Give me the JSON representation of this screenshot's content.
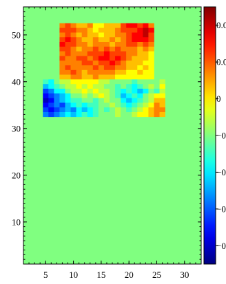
{
  "chart_data": {
    "type": "heatmap",
    "title": "",
    "xlabel": "",
    "ylabel": "",
    "xlim": [
      1,
      33
    ],
    "ylim": [
      1,
      56
    ],
    "x_ticks": [
      "5",
      "10",
      "15",
      "20",
      "25",
      "30"
    ],
    "y_ticks": [
      "10",
      "20",
      "30",
      "40",
      "50"
    ],
    "colormap": "jet",
    "background_value": 0,
    "clim": [
      -0.08,
      0.08
    ],
    "colorbar_ticks": [
      "0.0",
      "0.0",
      "0",
      "−0",
      "−0",
      "−0",
      "−0"
    ],
    "blocks": [
      {
        "name": "upper",
        "x_range": [
          8,
          24
        ],
        "y_range": [
          41,
          52
        ],
        "rows_top_to_bottom": [
          [
            0.04,
            0.05,
            0.04,
            0.03,
            0.03,
            0.04,
            0.02,
            0.02,
            0.03,
            0.03,
            0.03,
            0.05,
            0.06,
            0.06,
            0.05,
            0.06,
            0.04
          ],
          [
            0.05,
            0.05,
            0.05,
            0.04,
            0.04,
            0.03,
            0.02,
            0.03,
            0.03,
            0.03,
            0.04,
            0.05,
            0.05,
            0.05,
            0.06,
            0.07,
            0.06
          ],
          [
            0.04,
            0.05,
            0.04,
            0.03,
            0.04,
            0.03,
            0.03,
            0.02,
            0.03,
            0.03,
            0.04,
            0.04,
            0.05,
            0.06,
            0.06,
            0.07,
            0.05
          ],
          [
            0.05,
            0.06,
            0.05,
            0.04,
            0.03,
            0.03,
            0.04,
            0.03,
            0.03,
            0.04,
            0.03,
            0.04,
            0.05,
            0.06,
            0.06,
            0.06,
            0.05
          ],
          [
            0.06,
            0.05,
            0.05,
            0.04,
            0.04,
            0.03,
            0.04,
            0.04,
            0.04,
            0.03,
            0.04,
            0.04,
            0.05,
            0.05,
            0.04,
            0.05,
            0.04
          ],
          [
            0.05,
            0.05,
            0.04,
            0.03,
            0.04,
            0.04,
            0.05,
            0.04,
            0.05,
            0.04,
            0.05,
            0.04,
            0.04,
            0.04,
            0.03,
            0.04,
            0.03
          ],
          [
            0.04,
            0.05,
            0.04,
            0.04,
            0.04,
            0.05,
            0.05,
            0.05,
            0.06,
            0.05,
            0.05,
            0.05,
            0.04,
            0.04,
            0.03,
            0.03,
            0.02
          ],
          [
            0.05,
            0.04,
            0.04,
            0.05,
            0.05,
            0.04,
            0.05,
            0.06,
            0.06,
            0.05,
            0.06,
            0.05,
            0.04,
            0.03,
            0.03,
            0.03,
            0.02
          ],
          [
            0.04,
            0.04,
            0.04,
            0.04,
            0.05,
            0.05,
            0.04,
            0.05,
            0.05,
            0.06,
            0.05,
            0.04,
            0.03,
            0.03,
            0.03,
            0.02,
            0.02
          ],
          [
            0.04,
            0.05,
            0.04,
            0.04,
            0.04,
            0.04,
            0.05,
            0.04,
            0.05,
            0.05,
            0.04,
            0.04,
            0.03,
            0.03,
            0.02,
            0.03,
            0.02
          ],
          [
            0.04,
            0.04,
            0.05,
            0.04,
            0.03,
            0.04,
            0.04,
            0.04,
            0.04,
            0.04,
            0.03,
            0.03,
            0.02,
            0.02,
            0.03,
            0.02,
            0.02
          ],
          [
            0.03,
            0.03,
            0.04,
            0.04,
            0.03,
            0.03,
            0.04,
            0.03,
            0.03,
            0.03,
            0.02,
            0.02,
            0.02,
            0.02,
            0.02,
            0.02,
            0.02
          ]
        ]
      },
      {
        "name": "lower",
        "x_range": [
          5,
          26
        ],
        "y_range": [
          33,
          40
        ],
        "rows_top_to_bottom": [
          [
            -0.01,
            -0.02,
            0.0,
            0.01,
            0.01,
            0.02,
            0.02,
            0.02,
            0.02,
            0.02,
            0.01,
            0.01,
            0.0,
            0.0,
            0.0,
            0.0,
            -0.01,
            0.0,
            0.0,
            0.0,
            0.0,
            0.01
          ],
          [
            -0.03,
            -0.02,
            -0.01,
            0.0,
            0.01,
            0.01,
            0.02,
            0.01,
            0.02,
            0.01,
            0.01,
            0.0,
            0.0,
            -0.01,
            0.0,
            -0.01,
            -0.02,
            -0.01,
            0.0,
            0.01,
            0.0,
            0.02
          ],
          [
            -0.05,
            -0.04,
            -0.02,
            -0.02,
            0.0,
            0.01,
            0.01,
            0.02,
            0.01,
            0.02,
            0.01,
            0.01,
            0.0,
            -0.01,
            -0.02,
            -0.01,
            -0.02,
            -0.03,
            -0.02,
            0.0,
            -0.01,
            0.01
          ],
          [
            -0.06,
            -0.05,
            -0.04,
            -0.03,
            -0.02,
            0.0,
            0.0,
            0.01,
            0.0,
            0.01,
            0.02,
            0.01,
            0.0,
            -0.01,
            -0.03,
            -0.02,
            -0.01,
            -0.02,
            0.0,
            0.01,
            0.02,
            0.02
          ],
          [
            -0.07,
            -0.06,
            -0.04,
            -0.03,
            -0.02,
            -0.01,
            -0.01,
            0.0,
            0.0,
            -0.01,
            0.0,
            0.01,
            0.0,
            0.0,
            -0.02,
            -0.03,
            -0.02,
            -0.01,
            0.0,
            0.01,
            0.03,
            0.03
          ],
          [
            -0.06,
            -0.05,
            -0.04,
            -0.05,
            -0.03,
            -0.02,
            -0.01,
            -0.02,
            -0.01,
            -0.01,
            0.0,
            0.0,
            0.01,
            0.0,
            -0.01,
            -0.02,
            -0.01,
            0.0,
            0.01,
            0.02,
            0.04,
            0.03
          ],
          [
            -0.05,
            -0.06,
            -0.05,
            -0.04,
            -0.03,
            -0.04,
            -0.02,
            -0.03,
            -0.02,
            -0.01,
            0.0,
            -0.01,
            0.0,
            0.01,
            0.0,
            -0.01,
            0.0,
            0.01,
            0.02,
            0.03,
            0.04,
            0.04
          ],
          [
            -0.04,
            -0.05,
            -0.04,
            -0.03,
            -0.02,
            -0.03,
            -0.02,
            -0.01,
            -0.02,
            -0.01,
            0.0,
            0.0,
            0.0,
            0.01,
            0.0,
            0.0,
            0.01,
            0.02,
            0.02,
            0.03,
            0.04,
            0.03
          ]
        ]
      }
    ]
  }
}
